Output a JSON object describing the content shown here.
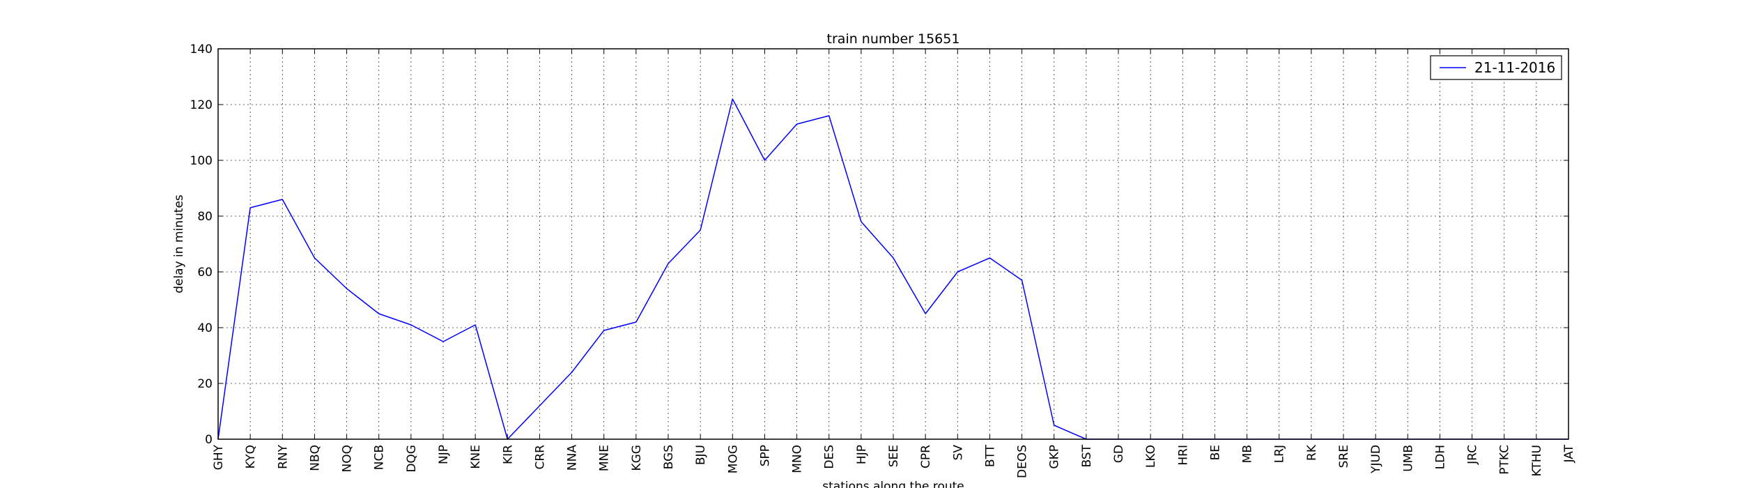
{
  "chart_data": {
    "type": "line",
    "title": "train number 15651",
    "xlabel": "stations along the route",
    "ylabel": "delay in minutes",
    "ylim": [
      0,
      140
    ],
    "yticks": [
      0,
      20,
      40,
      60,
      80,
      100,
      120,
      140
    ],
    "grid": true,
    "legend_position": "top-right",
    "categories": [
      "GHY",
      "KYQ",
      "RNY",
      "NBQ",
      "NOQ",
      "NCB",
      "DQG",
      "NJP",
      "KNE",
      "KIR",
      "CRR",
      "NNA",
      "MNE",
      "KGG",
      "BGS",
      "BJU",
      "MOG",
      "SPP",
      "MNO",
      "DES",
      "HJP",
      "SEE",
      "CPR",
      "SV",
      "BTT",
      "DEOS",
      "GKP",
      "BST",
      "GD",
      "LKO",
      "HRI",
      "BE",
      "MB",
      "LRJ",
      "RK",
      "SRE",
      "YJUD",
      "UMB",
      "LDH",
      "JRC",
      "PTKC",
      "KTHU",
      "JAT"
    ],
    "series": [
      {
        "name": "21-11-2016",
        "color": "#0000ff",
        "values": [
          0,
          83,
          86,
          65,
          54,
          45,
          41,
          35,
          41,
          0,
          12,
          24,
          39,
          42,
          63,
          75,
          122,
          100,
          113,
          116,
          78,
          65,
          45,
          60,
          65,
          57,
          5,
          0,
          0,
          0,
          0,
          0,
          0,
          0,
          0,
          0,
          0,
          0,
          0,
          0,
          0,
          0,
          0
        ]
      }
    ]
  }
}
